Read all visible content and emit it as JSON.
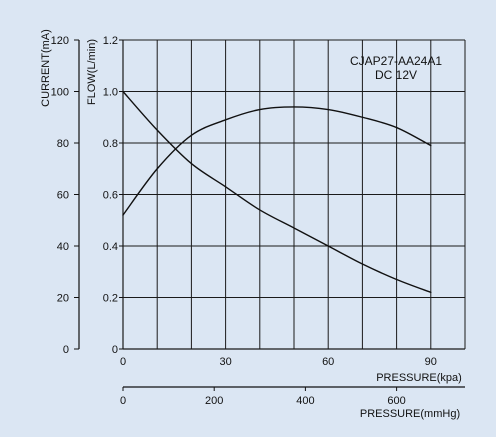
{
  "chart_data": {
    "type": "line",
    "title": "",
    "annotations": [
      "CJAP27-AA24A1",
      "DC 12V"
    ],
    "x": [
      0,
      10,
      20,
      30,
      40,
      50,
      60,
      70,
      80,
      90
    ],
    "xlim": [
      0,
      100
    ],
    "xlabel": "PRESSURE(kpa)",
    "x_ticks": [
      "0",
      "30",
      "60",
      "90"
    ],
    "x2label": "PRESSURE(mmHg)",
    "x2lim": [
      0,
      750
    ],
    "x2_ticks": [
      "0",
      "200",
      "400",
      "600"
    ],
    "ylabel_left": "CURRENT(mA)",
    "ylim_left": [
      0,
      120
    ],
    "y_left_ticks": [
      "0",
      "20",
      "40",
      "60",
      "80",
      "100",
      "120"
    ],
    "ylabel_right": "FLOW(L/min)",
    "ylim_right": [
      0,
      1.2
    ],
    "y_right_ticks": [
      "0",
      "0.2",
      "0.4",
      "0.6",
      "0.8",
      "1.0",
      "1.2"
    ],
    "grid": true,
    "series": [
      {
        "values": [
          1.0,
          0.85,
          0.72,
          0.63,
          0.54,
          0.47,
          0.4,
          0.33,
          0.27,
          0.22
        ]
      },
      {
        "values": [
          0.52,
          0.7,
          0.83,
          0.89,
          0.93,
          0.94,
          0.93,
          0.9,
          0.86,
          0.79
        ]
      }
    ]
  }
}
